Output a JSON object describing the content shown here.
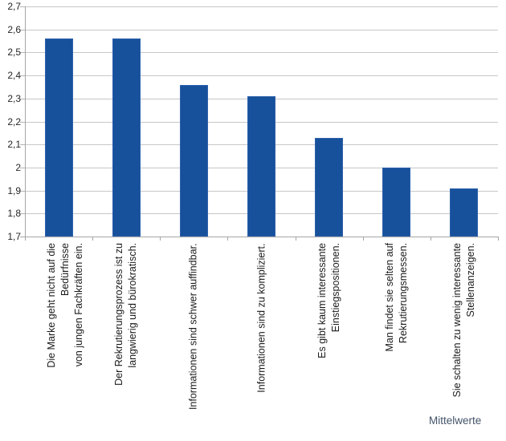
{
  "chart": {
    "bar_color": "#17519c",
    "bar_border_color": "#2e62ac",
    "gridline_color": "#c7c7c7",
    "axis_color": "#a6a6a6",
    "tick_label_color": "#262626",
    "category_label_color": "#1a1a1a",
    "note_color": "#44546a"
  },
  "chart_data": {
    "type": "bar",
    "title": "",
    "xlabel": "Mittelwerte",
    "ylabel": "",
    "categories": [
      "Die Marke geht nicht auf die Bedürfnisse\nvon jungen Fachkräften ein.",
      "Der Rekrutierungsprozess ist zu\nlangwierig und bürokratisch.",
      "Informationen sind schwer auffindbar.",
      "Informationen sind zu kompliziert.",
      "Es gibt kaum interessante\nEinstiegspositionen.",
      "Man findet sie selten auf\nRekrutierungsmessen.",
      "Sie schalten zu wenig interessante\nStellenanzeigen."
    ],
    "values": [
      2.56,
      2.56,
      2.36,
      2.31,
      2.13,
      2.0,
      1.91
    ],
    "ylim": [
      1.7,
      2.7
    ],
    "ytick_step": 0.1,
    "ytick_labels": [
      "2,7",
      "2,6",
      "2,5",
      "2,4",
      "2,3",
      "2,2",
      "2,1",
      "2",
      "1,9",
      "1,8",
      "1,7"
    ],
    "decimal_separator": ",",
    "grid": true,
    "legend": false
  }
}
